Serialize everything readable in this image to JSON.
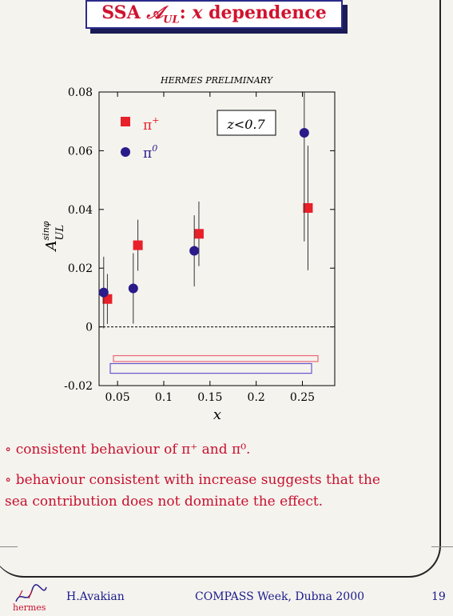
{
  "title": {
    "prefix": "SSA ",
    "math": "𝒜",
    "sub": "UL",
    "mid": ": ",
    "var": "x",
    "suffix": " dependence"
  },
  "chart_data": {
    "type": "scatter",
    "title": "HERMES PRELIMINARY",
    "xlabel": "x",
    "ylabel_base": "A",
    "ylabel_sup": "sinφ",
    "ylabel_sub": "UL",
    "annotation": "z<0.7",
    "xlim": [
      0.03,
      0.285
    ],
    "ylim": [
      -0.02,
      0.08
    ],
    "x_ticks": [
      0.05,
      0.1,
      0.15,
      0.2,
      0.25
    ],
    "x_tick_labels": [
      "0.05",
      "0.1",
      "0.15",
      "0.2",
      "0.25"
    ],
    "y_ticks": [
      -0.02,
      0,
      0.02,
      0.04,
      0.06,
      0.08
    ],
    "y_tick_labels": [
      "-0.02",
      "0",
      "0.02",
      "0.04",
      "0.06",
      "0.08"
    ],
    "series": [
      {
        "name": "π+",
        "label_base": "π",
        "label_sup": "+",
        "color": "#e8202a",
        "marker": "square",
        "x": [
          0.039,
          0.072,
          0.138,
          0.256
        ],
        "y": [
          0.0095,
          0.0278,
          0.0317,
          0.0405
        ],
        "err": [
          0.0085,
          0.0087,
          0.011,
          0.0212
        ]
      },
      {
        "name": "π0",
        "label_base": "π",
        "label_sup": "0",
        "color": "#2a1a8a",
        "marker": "circle",
        "x": [
          0.035,
          0.067,
          0.133,
          0.252
        ],
        "y": [
          0.0117,
          0.0131,
          0.0259,
          0.0661
        ],
        "err": [
          0.0122,
          0.012,
          0.0121,
          0.037
        ]
      }
    ],
    "systematic_bands": [
      {
        "series": "π+",
        "color": "#ee6677",
        "y_low": -0.0118,
        "y_high": -0.0098
      },
      {
        "series": "π0",
        "color": "#6655cc",
        "y_low": -0.0158,
        "y_high": -0.0125
      }
    ],
    "zero_line": "dashed"
  },
  "bullets": [
    "∘ consistent behaviour of π⁺ and π⁰.",
    "∘ behaviour consistent with increase suggests that the",
    "sea contribution does not dominate the effect."
  ],
  "footer": {
    "logo": "hermes",
    "author": "H.Avakian",
    "event": "COMPASS Week, Dubna 2000",
    "page": "19"
  },
  "colors": {
    "accent": "#d0132e",
    "navy": "#1a1a8c"
  }
}
